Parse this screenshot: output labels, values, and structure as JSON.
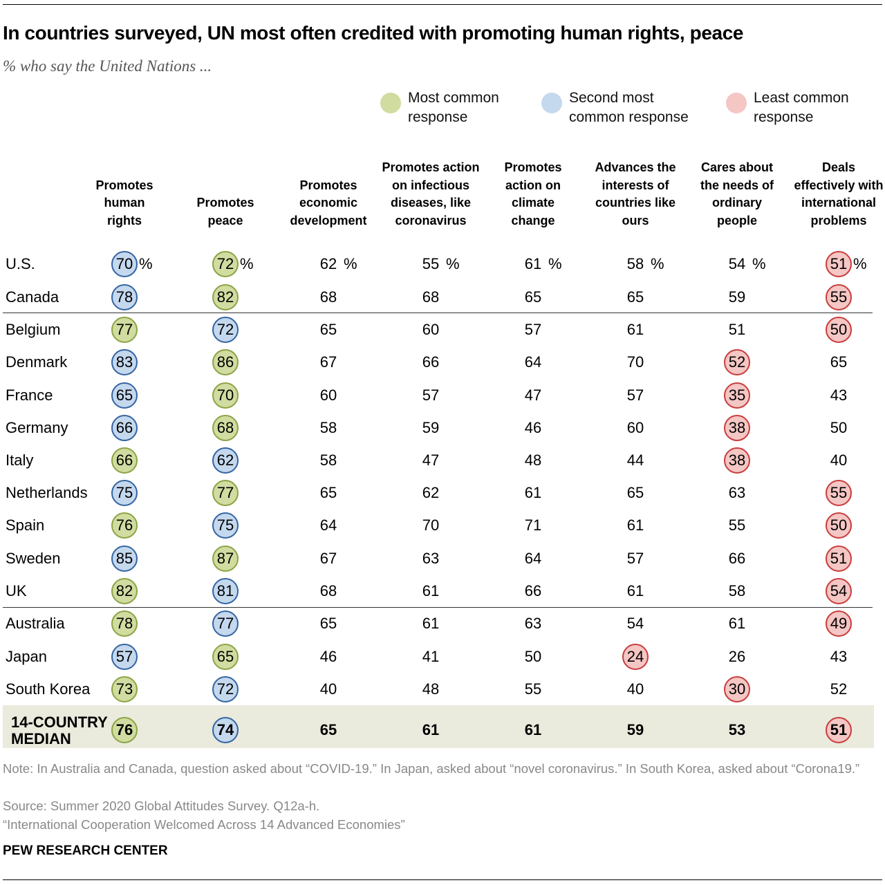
{
  "title": "In countries surveyed, UN most often credited with promoting human rights, peace",
  "subtitle": "% who say the United Nations ...",
  "legend": {
    "most": "Most common response",
    "second": "Second most common response",
    "least": "Least common response"
  },
  "colors": {
    "most": "#d0dca0",
    "second": "#c4d8ee",
    "least": "#f4c6c4"
  },
  "chart_data": {
    "type": "table",
    "columns": [
      "Promotes human rights",
      "Promotes peace",
      "Promotes economic development",
      "Promotes action on infectious diseases, like coronavirus",
      "Promotes action on climate change",
      "Advances the interests of countries like ours",
      "Cares about the needs of ordinary people",
      "Deals effectively with international problems"
    ],
    "rows": [
      {
        "country": "U.S.",
        "values": [
          70,
          72,
          62,
          55,
          61,
          58,
          54,
          51
        ],
        "marks": [
          "b",
          "g",
          "",
          "",
          "",
          "",
          "",
          "r"
        ]
      },
      {
        "country": "Canada",
        "values": [
          78,
          82,
          68,
          68,
          65,
          65,
          59,
          55
        ],
        "marks": [
          "b",
          "g",
          "",
          "",
          "",
          "",
          "",
          "r"
        ]
      },
      {
        "country": "Belgium",
        "values": [
          77,
          72,
          65,
          60,
          57,
          61,
          51,
          50
        ],
        "marks": [
          "g",
          "b",
          "",
          "",
          "",
          "",
          "",
          "r"
        ]
      },
      {
        "country": "Denmark",
        "values": [
          83,
          86,
          67,
          66,
          64,
          70,
          52,
          65
        ],
        "marks": [
          "b",
          "g",
          "",
          "",
          "",
          "",
          "r",
          ""
        ]
      },
      {
        "country": "France",
        "values": [
          65,
          70,
          60,
          57,
          47,
          57,
          35,
          43
        ],
        "marks": [
          "b",
          "g",
          "",
          "",
          "",
          "",
          "r",
          ""
        ]
      },
      {
        "country": "Germany",
        "values": [
          66,
          68,
          58,
          59,
          46,
          60,
          38,
          50
        ],
        "marks": [
          "b",
          "g",
          "",
          "",
          "",
          "",
          "r",
          ""
        ]
      },
      {
        "country": "Italy",
        "values": [
          66,
          62,
          58,
          47,
          48,
          44,
          38,
          40
        ],
        "marks": [
          "g",
          "b",
          "",
          "",
          "",
          "",
          "r",
          ""
        ]
      },
      {
        "country": "Netherlands",
        "values": [
          75,
          77,
          65,
          62,
          61,
          65,
          63,
          55
        ],
        "marks": [
          "b",
          "g",
          "",
          "",
          "",
          "",
          "",
          "r"
        ]
      },
      {
        "country": "Spain",
        "values": [
          76,
          75,
          64,
          70,
          71,
          61,
          55,
          50
        ],
        "marks": [
          "g",
          "b",
          "",
          "",
          "",
          "",
          "",
          "r"
        ]
      },
      {
        "country": "Sweden",
        "values": [
          85,
          87,
          67,
          63,
          64,
          57,
          66,
          51
        ],
        "marks": [
          "b",
          "g",
          "",
          "",
          "",
          "",
          "",
          "r"
        ]
      },
      {
        "country": "UK",
        "values": [
          82,
          81,
          68,
          61,
          66,
          61,
          58,
          54
        ],
        "marks": [
          "g",
          "b",
          "",
          "",
          "",
          "",
          "",
          "r"
        ]
      },
      {
        "country": "Australia",
        "values": [
          78,
          77,
          65,
          61,
          63,
          54,
          61,
          49
        ],
        "marks": [
          "g",
          "b",
          "",
          "",
          "",
          "",
          "",
          "r"
        ]
      },
      {
        "country": "Japan",
        "values": [
          57,
          65,
          46,
          41,
          50,
          24,
          26,
          43
        ],
        "marks": [
          "b",
          "g",
          "",
          "",
          "",
          "r",
          "",
          ""
        ]
      },
      {
        "country": "South Korea",
        "values": [
          73,
          72,
          40,
          48,
          55,
          40,
          30,
          52
        ],
        "marks": [
          "g",
          "b",
          "",
          "",
          "",
          "",
          "r",
          ""
        ]
      }
    ],
    "median": {
      "label": "14-COUNTRY MEDIAN",
      "values": [
        76,
        74,
        65,
        61,
        61,
        59,
        53,
        51
      ],
      "marks": [
        "g",
        "b",
        "",
        "",
        "",
        "",
        "",
        "r"
      ]
    },
    "percent_sign": "%"
  },
  "notes": {
    "note": "Note: In Australia and Canada, question asked about “COVID-19.” In Japan, asked about “novel coronavirus.” In South Korea, asked about “Corona19.”",
    "source": "Source: Summer 2020 Global Attitudes Survey. Q12a-h.",
    "report": "“International Cooperation Welcomed Across 14 Advanced Economies”"
  },
  "brand": "PEW RESEARCH CENTER"
}
